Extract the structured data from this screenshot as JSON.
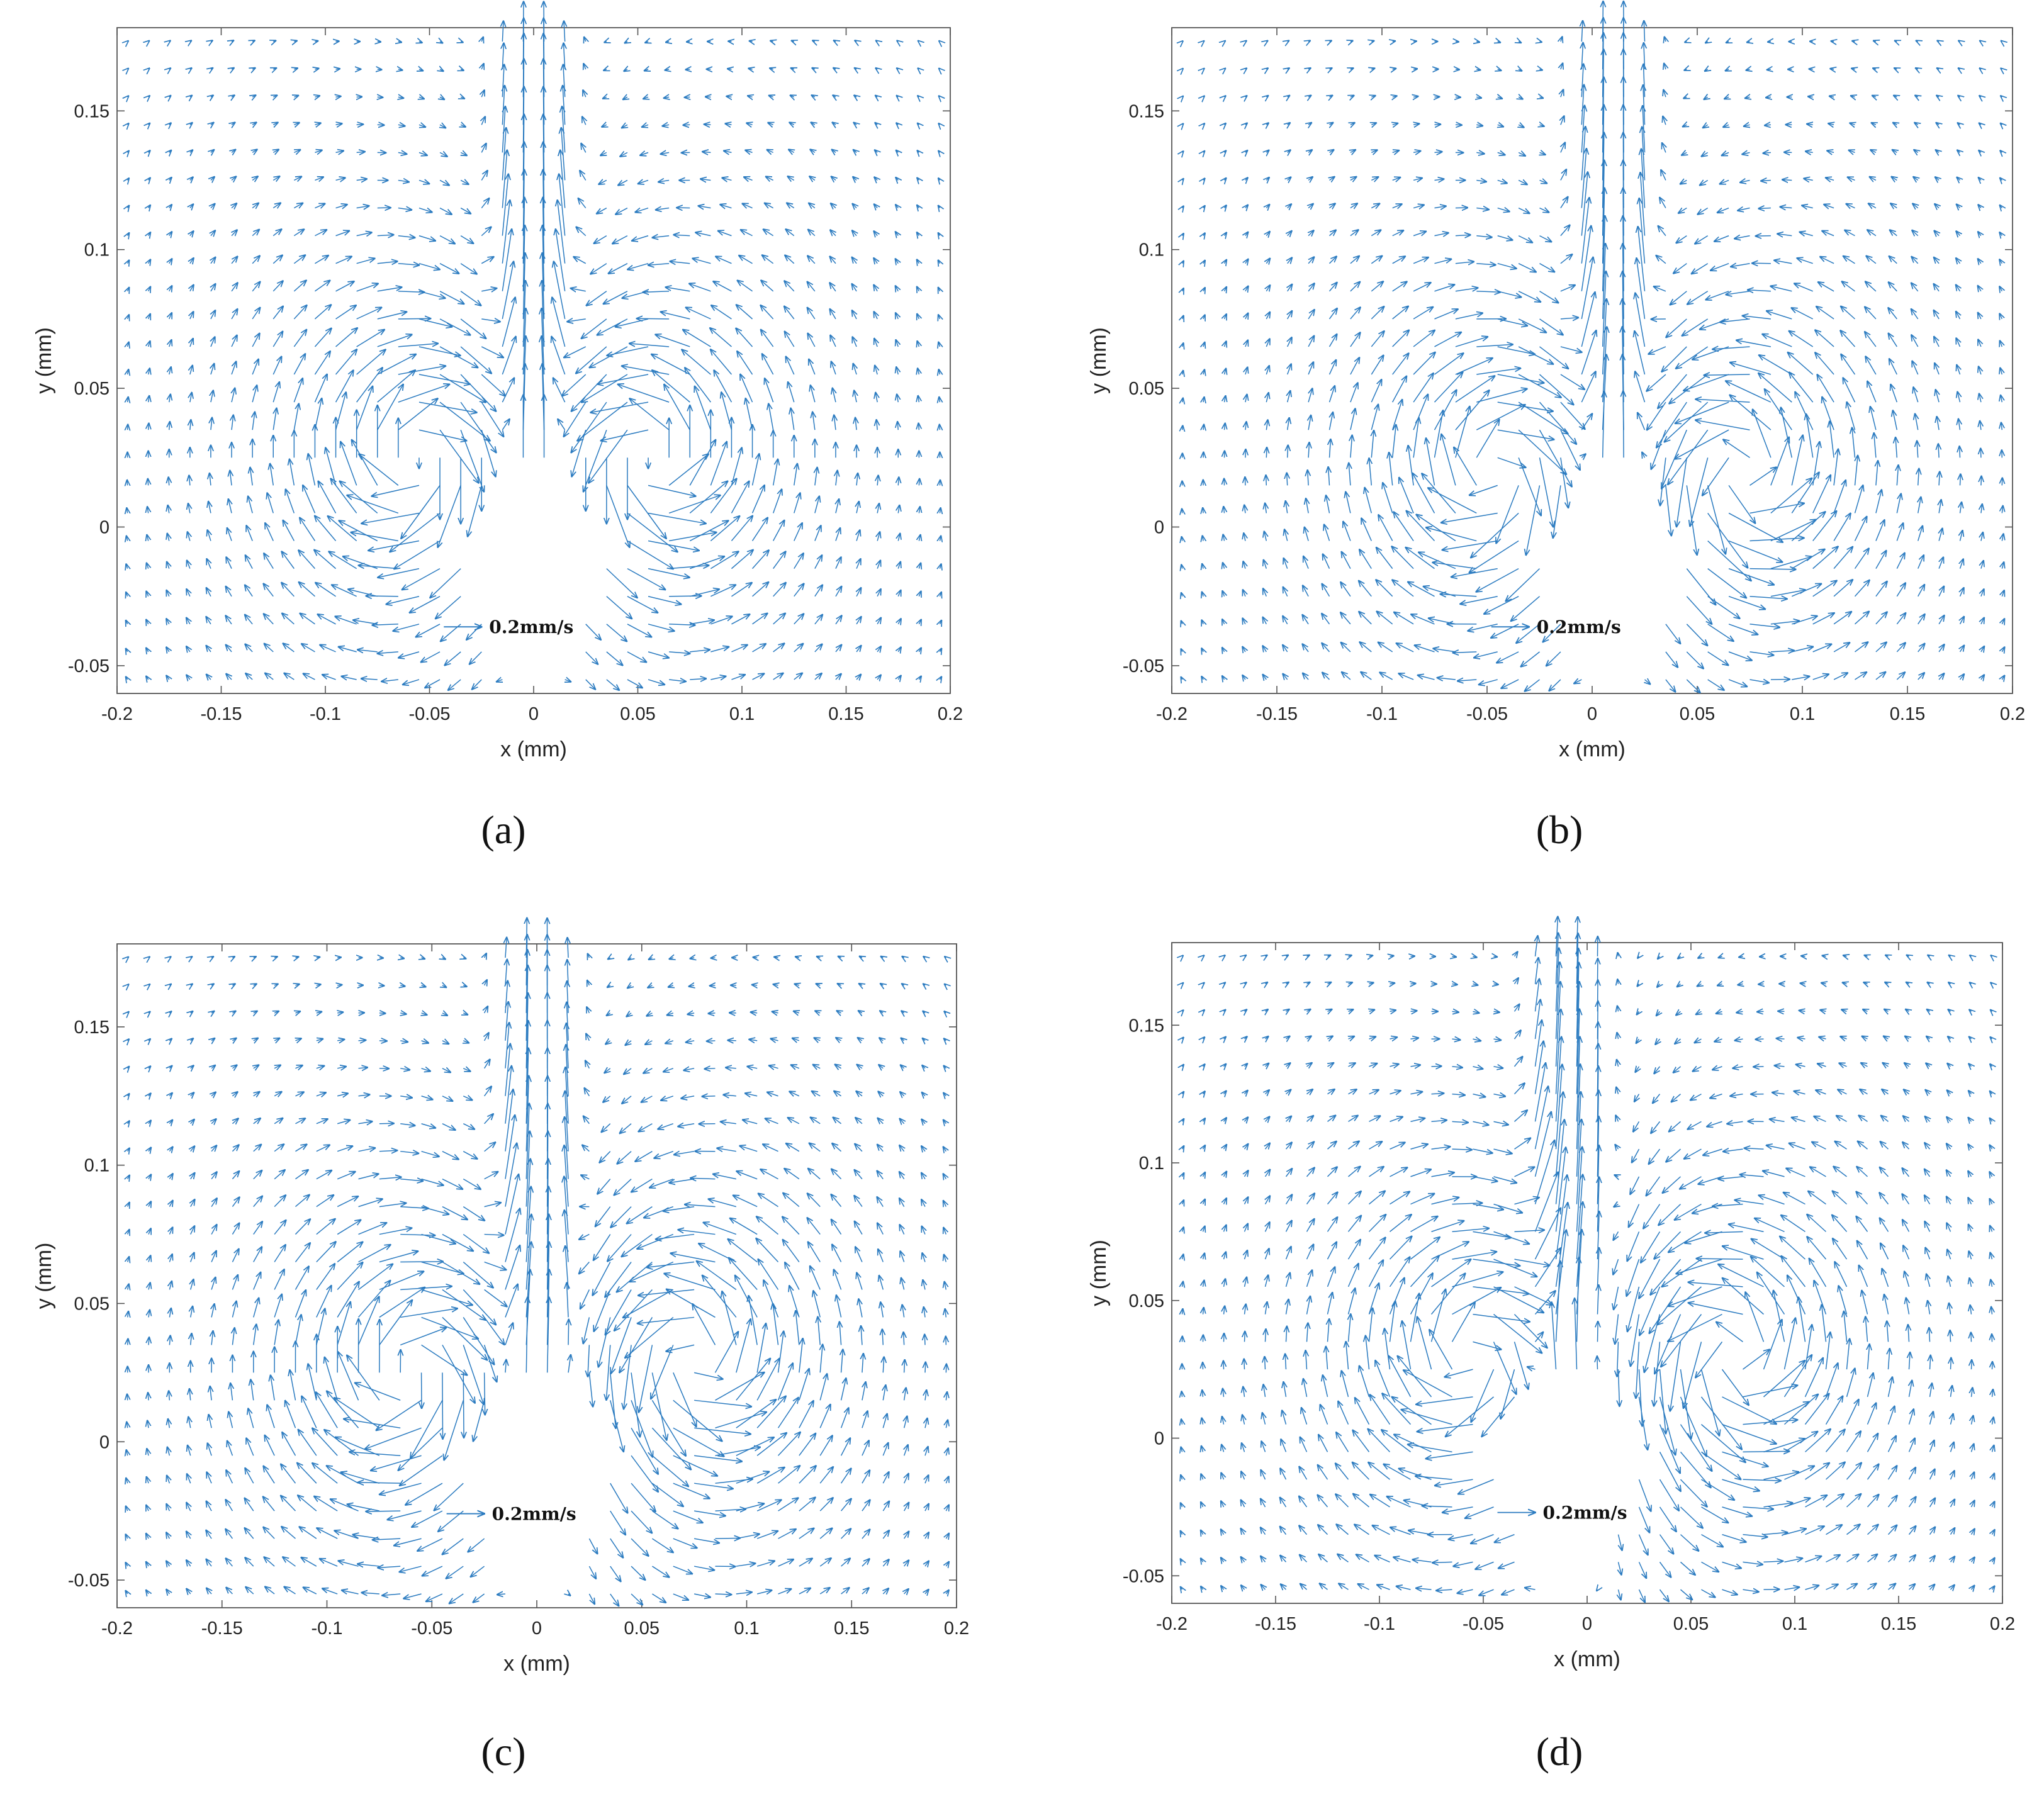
{
  "chart_data": [
    {
      "type": "quiver",
      "panel_label": "(a)",
      "xlabel": "x (mm)",
      "ylabel": "y (mm)",
      "xlim": [
        -0.2,
        0.2
      ],
      "ylim": [
        -0.06,
        0.18
      ],
      "xticks": [
        "-0.2",
        "-0.15",
        "-0.1",
        "-0.05",
        "0",
        "0.05",
        "0.1",
        "0.15",
        "0.2"
      ],
      "yticks": [
        "-0.05",
        "0",
        "0.05",
        "0.1",
        "0.15"
      ],
      "reference_vector_label": "0.2mm/s",
      "reference_vector_mm_s": 0.2,
      "reference_position": [
        -0.025,
        -0.036
      ],
      "field": {
        "jet_center_x": 0.0,
        "vortex_centers": [
          [
            -0.055,
            0.025
          ],
          [
            0.055,
            0.025
          ]
        ],
        "peak_speed_mm_s": 0.35
      },
      "arrow_color": "#2b7bc0"
    },
    {
      "type": "quiver",
      "panel_label": "(b)",
      "xlabel": "x (mm)",
      "ylabel": "y (mm)",
      "xlim": [
        -0.2,
        0.2
      ],
      "ylim": [
        -0.06,
        0.18
      ],
      "xticks": [
        "-0.2",
        "-0.15",
        "-0.1",
        "-0.05",
        "0",
        "0.05",
        "0.1",
        "0.15",
        "0.2"
      ],
      "yticks": [
        "-0.05",
        "0",
        "0.05",
        "0.1",
        "0.15"
      ],
      "reference_vector_label": "0.2mm/s",
      "reference_vector_mm_s": 0.2,
      "reference_position": [
        -0.03,
        -0.036
      ],
      "field": {
        "jet_center_x": 0.01,
        "vortex_centers": [
          [
            -0.045,
            0.02
          ],
          [
            0.07,
            0.02
          ]
        ],
        "peak_speed_mm_s": 0.4
      },
      "arrow_color": "#2b7bc0"
    },
    {
      "type": "quiver",
      "panel_label": "(c)",
      "xlabel": "x (mm)",
      "ylabel": "y (mm)",
      "xlim": [
        -0.2,
        0.2
      ],
      "ylim": [
        -0.06,
        0.18
      ],
      "xticks": [
        "-0.2",
        "-0.15",
        "-0.1",
        "-0.05",
        "0",
        "0.05",
        "0.1",
        "0.15",
        "0.2"
      ],
      "yticks": [
        "-0.05",
        "0",
        "0.05",
        "0.1",
        "0.15"
      ],
      "reference_vector_label": "0.2mm/s",
      "reference_vector_mm_s": 0.2,
      "reference_position": [
        -0.025,
        -0.026
      ],
      "field": {
        "jet_center_x": 0.0,
        "vortex_centers": [
          [
            -0.06,
            0.025
          ],
          [
            0.075,
            0.03
          ]
        ],
        "peak_speed_mm_s": 0.4
      },
      "arrow_color": "#2b7bc0"
    },
    {
      "type": "quiver",
      "panel_label": "(d)",
      "xlabel": "x (mm)",
      "ylabel": "y (mm)",
      "xlim": [
        -0.2,
        0.2
      ],
      "ylim": [
        -0.06,
        0.18
      ],
      "xticks": [
        "-0.2",
        "-0.15",
        "-0.1",
        "-0.05",
        "0",
        "0.05",
        "0.1",
        "0.15",
        "0.2"
      ],
      "yticks": [
        "-0.05",
        "0",
        "0.05",
        "0.1",
        "0.15"
      ],
      "reference_vector_label": "0.2mm/s",
      "reference_vector_mm_s": 0.2,
      "reference_position": [
        -0.025,
        -0.027
      ],
      "field": {
        "jet_center_x": -0.01,
        "vortex_centers": [
          [
            -0.055,
            0.03
          ],
          [
            0.07,
            0.03
          ]
        ],
        "peak_speed_mm_s": 0.45
      },
      "arrow_color": "#2b7bc0"
    }
  ]
}
